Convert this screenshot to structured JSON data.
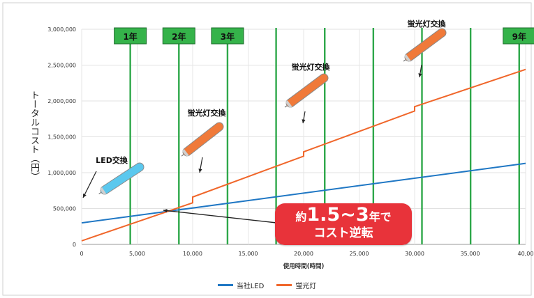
{
  "chart_data": {
    "type": "line",
    "title": "",
    "xlabel": "使用時間(時間)",
    "ylabel": "トータルコスト（円）",
    "xlim": [
      0,
      40000
    ],
    "ylim": [
      0,
      3000000
    ],
    "x_ticks": [
      "0",
      "5,000",
      "10,000",
      "15,000",
      "20,000",
      "25,000",
      "30,000",
      "35,000",
      "40,00"
    ],
    "y_ticks": [
      "0",
      "500,000",
      "1,000,000",
      "1,500,000",
      "2,000,000",
      "2,500,000",
      "3,000,000"
    ],
    "series": [
      {
        "name": "当社LED",
        "color": "#1f77c4",
        "points": [
          [
            0,
            300000
          ],
          [
            40000,
            1130000
          ]
        ]
      },
      {
        "name": "蛍光灯",
        "color": "#f0662a",
        "points": [
          [
            0,
            50000
          ],
          [
            10000,
            580000
          ],
          [
            10000,
            660000
          ],
          [
            20000,
            1230000
          ],
          [
            20000,
            1290000
          ],
          [
            30000,
            1860000
          ],
          [
            30000,
            1920000
          ],
          [
            40000,
            2440000
          ]
        ]
      }
    ],
    "year_lines": [
      {
        "x": 4380,
        "label": "1年"
      },
      {
        "x": 8760,
        "label": "2年"
      },
      {
        "x": 13140,
        "label": "3年"
      },
      {
        "x": 17520,
        "label": ""
      },
      {
        "x": 21900,
        "label": ""
      },
      {
        "x": 26280,
        "label": ""
      },
      {
        "x": 30660,
        "label": ""
      },
      {
        "x": 35040,
        "label": ""
      },
      {
        "x": 39420,
        "label": "9年"
      }
    ],
    "grid": true,
    "legend_position": "bottom"
  },
  "annotations": {
    "led_exchange": "LED交換",
    "fluorescent_exchange": "蛍光灯交換",
    "badge_prefix": "約",
    "badge_value": "1.5~3",
    "badge_suffix": "年で",
    "badge_line2": "コスト逆転"
  },
  "colors": {
    "year_line": "#2ea84a",
    "year_box": "#35b34a",
    "badge": "#e8333a",
    "led_tube": "#5bc8ee",
    "fluorescent_tube": "#f07a3a"
  }
}
